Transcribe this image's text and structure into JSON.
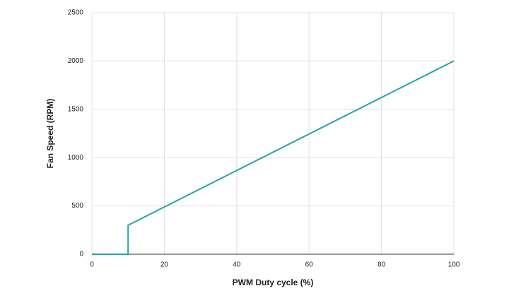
{
  "chart_data": {
    "type": "line",
    "x_label": "PWM Duty cycle (%)",
    "y_label": "Fan Speed (RPM)",
    "x": [
      0,
      10,
      10,
      100
    ],
    "values": [
      0,
      0,
      300,
      2000
    ],
    "color": "#26a69a",
    "xlim": [
      0,
      100
    ],
    "xticks": [
      0,
      20,
      40,
      60,
      80,
      100
    ],
    "ylim": [
      0,
      2500
    ],
    "yticks": [
      0,
      500,
      1000,
      1500,
      2000,
      2500
    ],
    "grid": true
  }
}
